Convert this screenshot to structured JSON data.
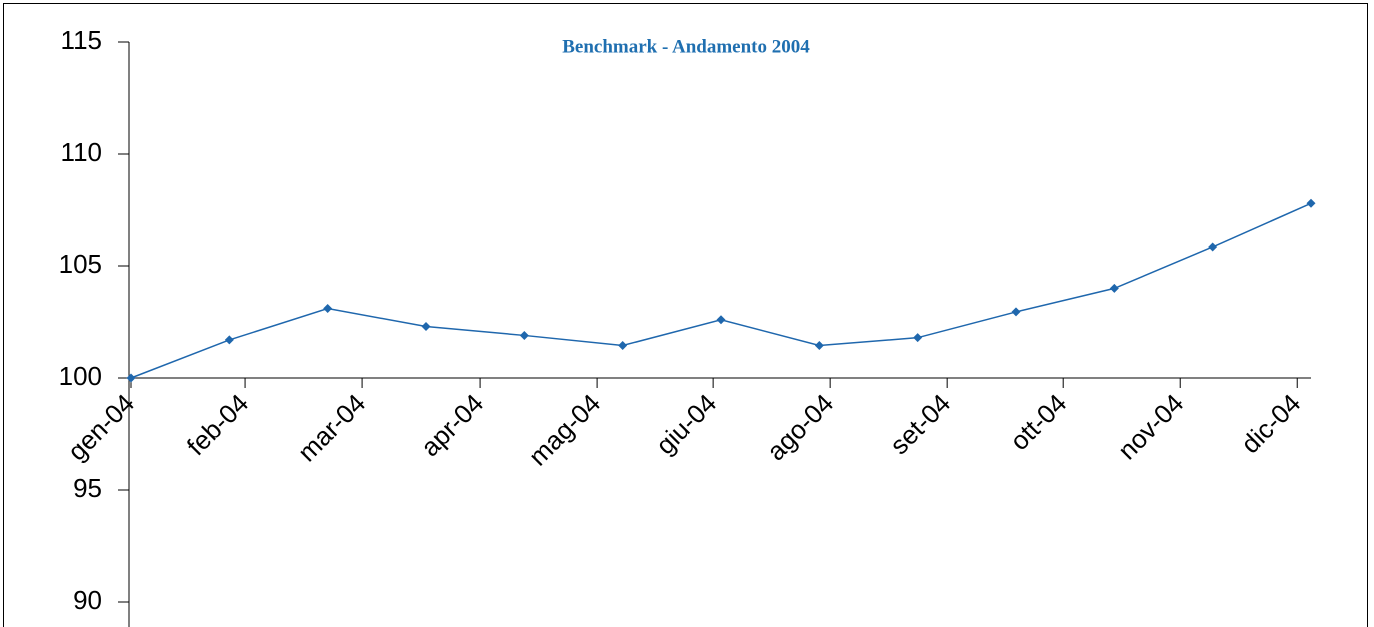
{
  "chart_data": {
    "type": "line",
    "title": "Benchmark - Andamento 2004",
    "x": [
      0,
      1,
      2,
      3,
      4,
      5,
      6,
      7,
      8,
      9,
      10,
      11,
      12
    ],
    "xlim": [
      0,
      12
    ],
    "xticks": [
      {
        "value": 0,
        "label": "gen-04"
      },
      {
        "value": 1.16,
        "label": "feb-04"
      },
      {
        "value": 2.35,
        "label": "mar-04"
      },
      {
        "value": 3.55,
        "label": "apr-04"
      },
      {
        "value": 4.74,
        "label": "mag-04"
      },
      {
        "value": 5.92,
        "label": "giu-04"
      },
      {
        "value": 7.11,
        "label": "ago-04"
      },
      {
        "value": 8.3,
        "label": "set-04"
      },
      {
        "value": 9.48,
        "label": "ott-04"
      },
      {
        "value": 10.67,
        "label": "nov-04"
      },
      {
        "value": 11.86,
        "label": "dic-04"
      }
    ],
    "series": [
      {
        "color": "#1f67ad",
        "values": [
          100,
          101.7,
          103.1,
          102.3,
          101.9,
          101.45,
          102.6,
          101.45,
          101.8,
          102.95,
          104.0,
          105.85,
          107.8
        ]
      }
    ],
    "ylim": [
      90,
      115
    ],
    "yticks": [
      90,
      95,
      100,
      105,
      110,
      115
    ],
    "x_axis_crosses": 100,
    "grid": false
  }
}
